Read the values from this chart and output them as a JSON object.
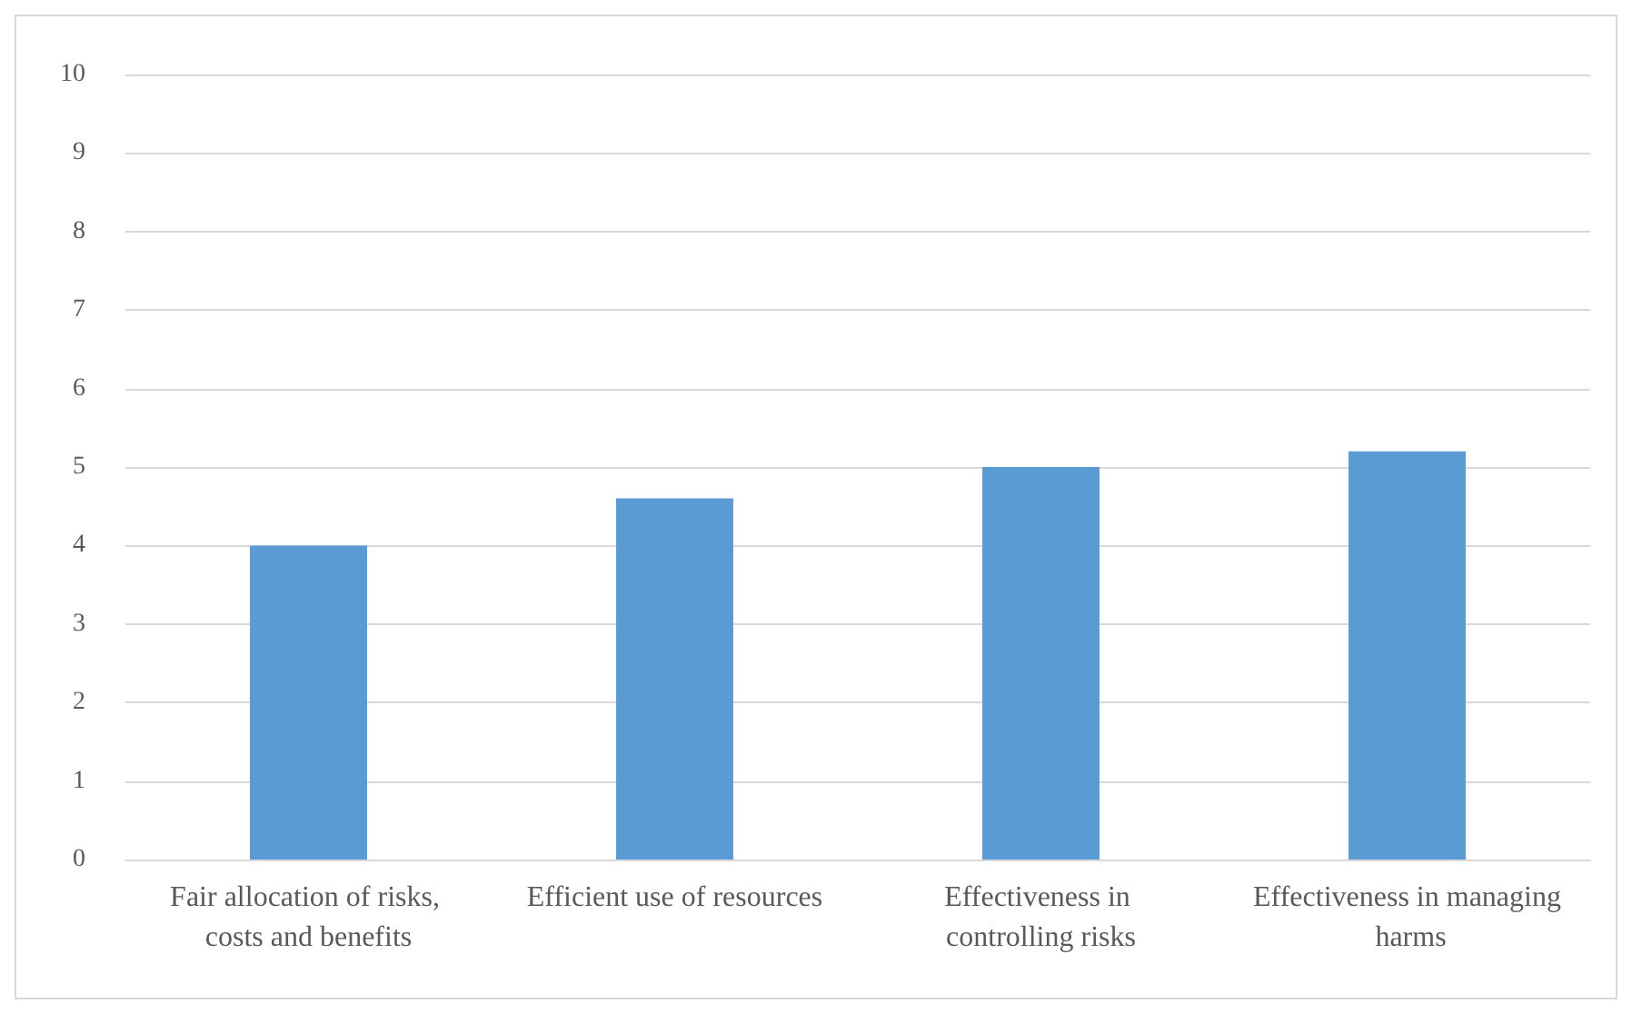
{
  "chart_data": {
    "type": "bar",
    "categories": [
      "Fair allocation of risks, costs and benefits",
      "Efficient use of resources",
      "Effectiveness in controlling risks",
      "Effectiveness in managing harms"
    ],
    "values": [
      4.0,
      4.6,
      5.0,
      5.2
    ],
    "color": "#5b9bd5",
    "ylim": [
      0,
      10
    ],
    "yticks": [
      0,
      1,
      2,
      3,
      4,
      5,
      6,
      7,
      8,
      9,
      10
    ],
    "grid": "y"
  }
}
